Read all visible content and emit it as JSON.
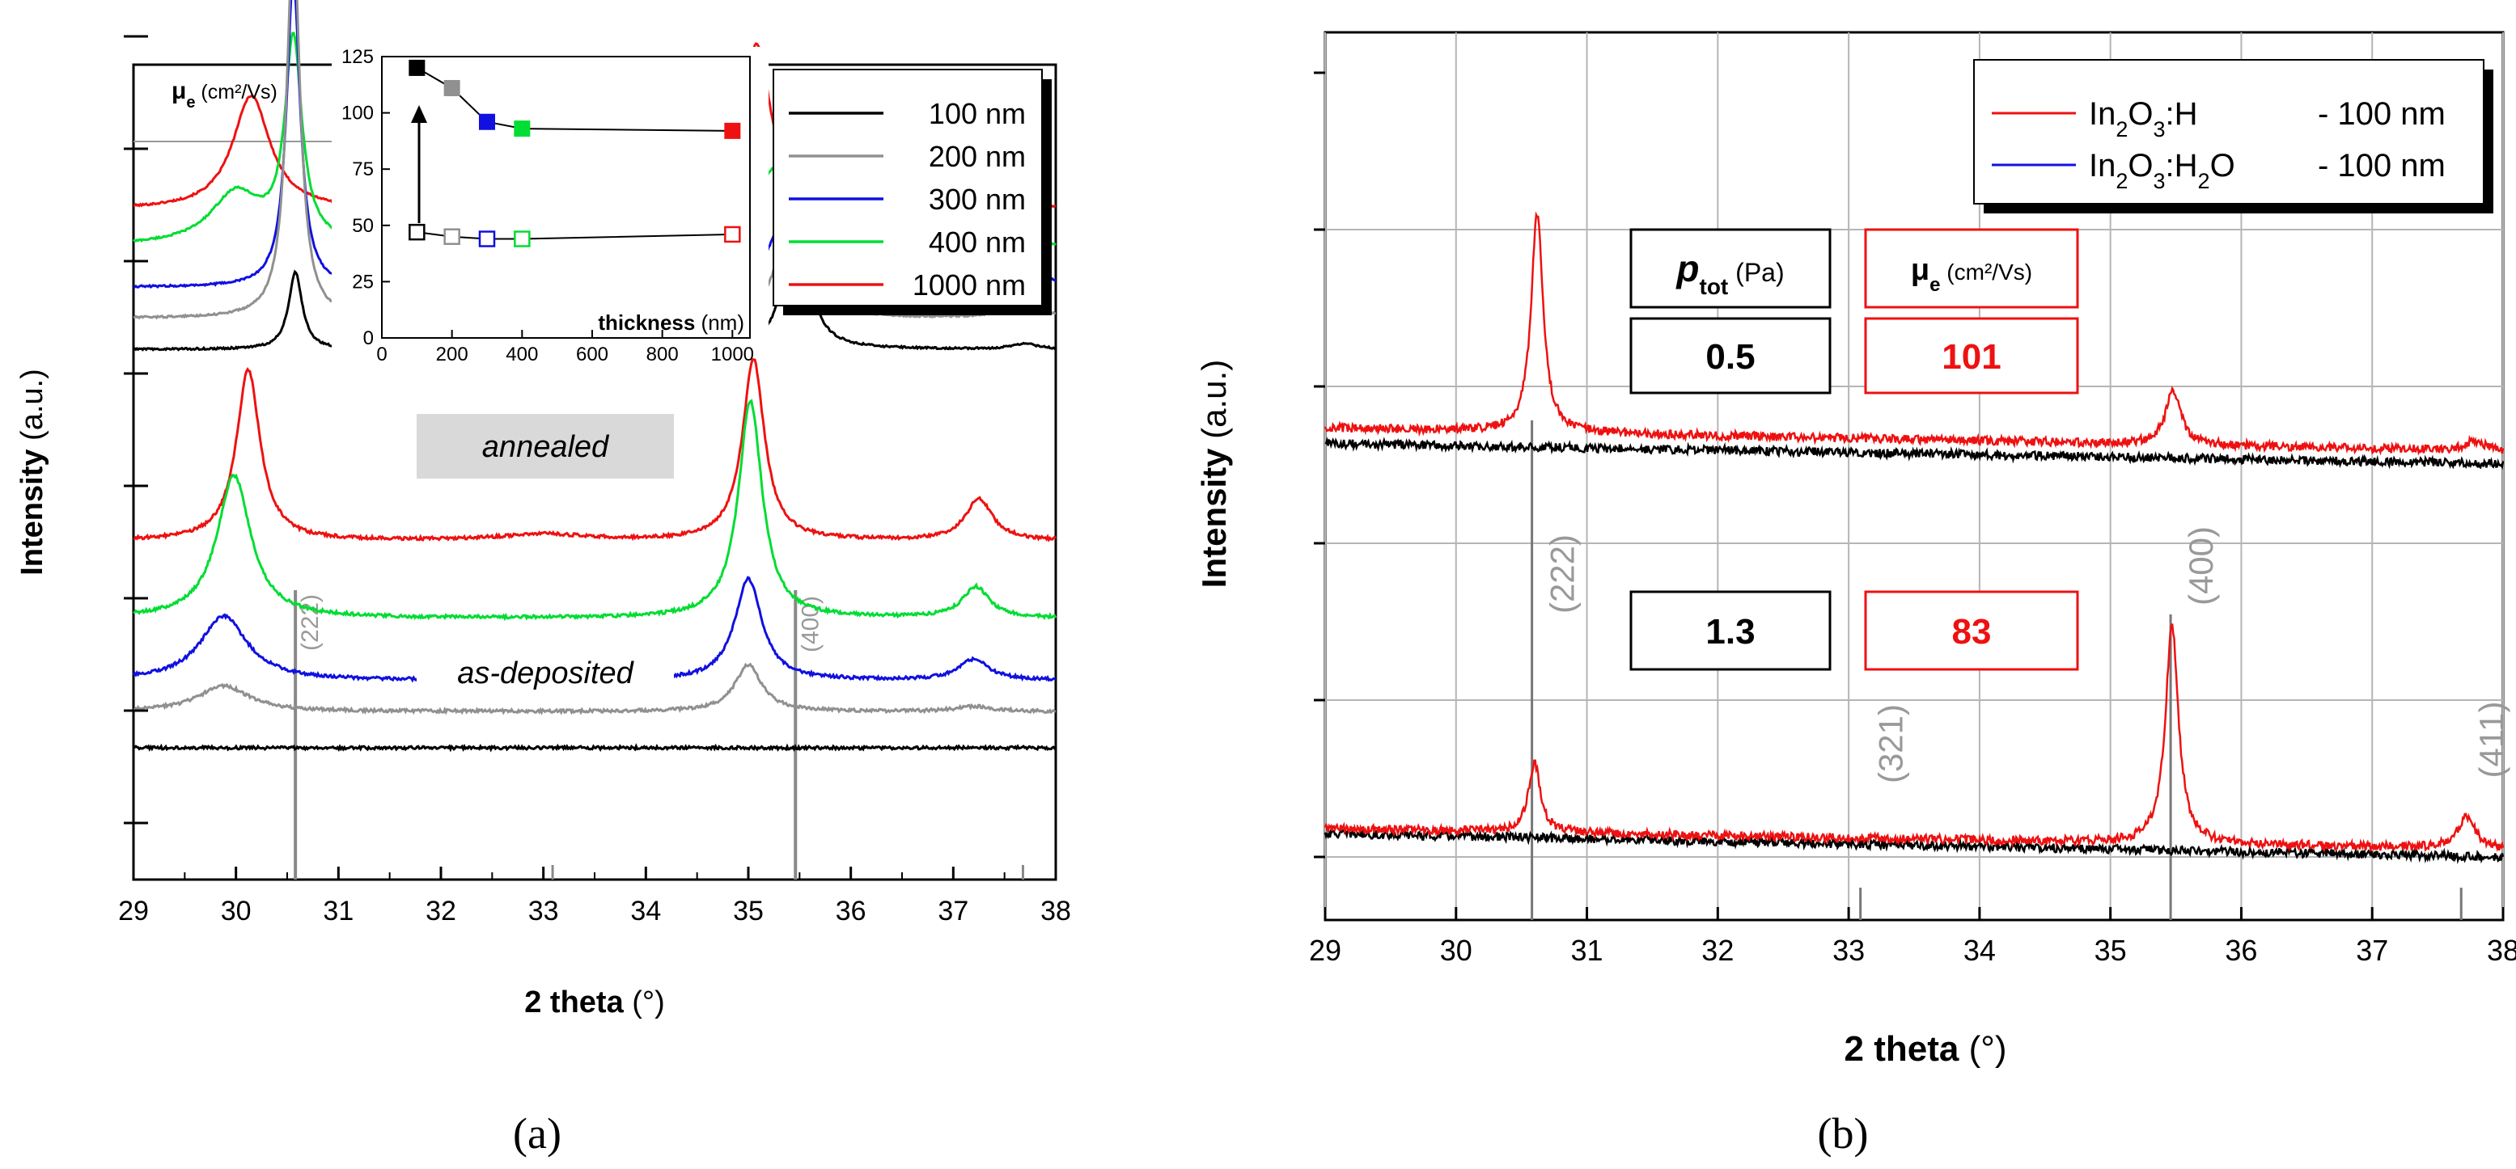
{
  "panel_labels": {
    "a": "(a)",
    "b": "(b)"
  },
  "chart_data": [
    {
      "panel": "a",
      "type": "line",
      "xlabel_bold": "2 theta",
      "xlabel_unit": " (°)",
      "ylabel_bold": "Intensity",
      "ylabel_unit": " (a.u.)",
      "xlim": [
        29,
        38
      ],
      "xticks": [
        "29",
        "30",
        "31",
        "32",
        "33",
        "34",
        "35",
        "36",
        "37",
        "38"
      ],
      "legend": [
        {
          "name": "100 nm",
          "color": "#000000"
        },
        {
          "name": "200 nm",
          "color": "#909090"
        },
        {
          "name": "300 nm",
          "color": "#1010e0"
        },
        {
          "name": "400 nm",
          "color": "#00dd33"
        },
        {
          "name": "1000 nm",
          "color": "#ee1111"
        }
      ],
      "box_labels": {
        "annealed": "annealed",
        "as_deposited": "as-deposited"
      },
      "reflections": [
        {
          "label": "(222)",
          "two_theta": 30.58
        },
        {
          "label": "(400)",
          "two_theta": 35.46
        }
      ],
      "minor_tick_positions": [
        33.09,
        37.68
      ],
      "mobility_axis_label_main": "μ",
      "mobility_axis_label_sub": "e",
      "mobility_axis_label_unit": " (cm²/Vs)",
      "series": [
        {
          "group": "annealed",
          "color": "#ee1111",
          "offset": 6.2,
          "peaks": [
            [
              30.15,
              0.22,
              1.1
            ],
            [
              32.75,
              0.3,
              0.12
            ],
            [
              35.08,
              0.17,
              1.6
            ],
            [
              37.25,
              0.2,
              0.35
            ]
          ]
        },
        {
          "group": "annealed",
          "color": "#00dd33",
          "offset": 5.85,
          "peaks": [
            [
              30.0,
              0.3,
              0.5
            ],
            [
              30.56,
              0.1,
              1.95
            ],
            [
              35.25,
              0.2,
              0.75
            ],
            [
              37.3,
              0.2,
              0.15
            ]
          ]
        },
        {
          "group": "annealed",
          "color": "#1010e0",
          "offset": 5.45,
          "peaks": [
            [
              30.56,
              0.08,
              3.0
            ],
            [
              35.4,
              0.18,
              0.85
            ],
            [
              37.65,
              0.2,
              0.25
            ]
          ]
        },
        {
          "group": "annealed",
          "color": "#909090",
          "offset": 5.15,
          "peaks": [
            [
              30.56,
              0.08,
              3.7
            ],
            [
              35.45,
              0.12,
              1.8
            ],
            [
              37.68,
              0.15,
              0.25
            ]
          ]
        },
        {
          "group": "annealed",
          "color": "#000000",
          "offset": 4.85,
          "peaks": [
            [
              30.58,
              0.08,
              0.75
            ],
            [
              35.47,
              0.12,
              1.55
            ],
            [
              37.7,
              0.15,
              0.05
            ]
          ]
        },
        {
          "group": "as-deposited",
          "color": "#ee1111",
          "offset": 3.0,
          "peaks": [
            [
              30.12,
              0.14,
              1.65
            ],
            [
              33.0,
              0.5,
              0.06
            ],
            [
              35.05,
              0.13,
              1.75
            ],
            [
              37.25,
              0.16,
              0.4
            ]
          ]
        },
        {
          "group": "as-deposited",
          "color": "#00dd33",
          "offset": 2.25,
          "peaks": [
            [
              29.98,
              0.2,
              1.38
            ],
            [
              35.02,
              0.14,
              2.1
            ],
            [
              37.22,
              0.16,
              0.3
            ]
          ]
        },
        {
          "group": "as-deposited",
          "color": "#1010e0",
          "offset": 1.65,
          "peaks": [
            [
              29.88,
              0.28,
              0.62
            ],
            [
              35.0,
              0.16,
              0.98
            ],
            [
              37.2,
              0.18,
              0.2
            ]
          ]
        },
        {
          "group": "as-deposited",
          "color": "#909090",
          "offset": 1.35,
          "peaks": [
            [
              29.88,
              0.3,
              0.25
            ],
            [
              35.0,
              0.16,
              0.45
            ],
            [
              37.2,
              0.2,
              0.05
            ]
          ]
        },
        {
          "group": "as-deposited",
          "color": "#000000",
          "offset": 1.0,
          "peaks": []
        }
      ],
      "inset": {
        "type": "scatter",
        "xlabel_bold": "thickness",
        "xlabel_unit": " (nm)",
        "xlim": [
          0,
          1050
        ],
        "ylim": [
          0,
          125
        ],
        "xticks": [
          0,
          200,
          400,
          600,
          800,
          1000
        ],
        "yticks": [
          0,
          25,
          50,
          75,
          100,
          125
        ],
        "annealed": [
          {
            "x": 100,
            "y": 120,
            "color": "#000000"
          },
          {
            "x": 200,
            "y": 111,
            "color": "#909090"
          },
          {
            "x": 300,
            "y": 96,
            "color": "#1010e0"
          },
          {
            "x": 400,
            "y": 93,
            "color": "#00dd33"
          },
          {
            "x": 1000,
            "y": 92,
            "color": "#ee1111"
          }
        ],
        "as_deposited": [
          {
            "x": 100,
            "y": 47,
            "color": "#000000"
          },
          {
            "x": 200,
            "y": 45,
            "color": "#909090"
          },
          {
            "x": 300,
            "y": 44,
            "color": "#1010e0"
          },
          {
            "x": 400,
            "y": 44,
            "color": "#00dd33"
          },
          {
            "x": 1000,
            "y": 46,
            "color": "#ee1111"
          }
        ]
      }
    },
    {
      "panel": "b",
      "type": "line",
      "xlabel_bold": "2 theta",
      "xlabel_unit": " (°)",
      "ylabel_bold": "Intensity",
      "ylabel_unit": " (a.u.)",
      "xlim": [
        29,
        38
      ],
      "xticks": [
        "29",
        "30",
        "31",
        "32",
        "33",
        "34",
        "35",
        "36",
        "37",
        "38"
      ],
      "legend": [
        {
          "formula_parts": [
            "In",
            "2",
            "O",
            "3",
            ":H"
          ],
          "suffix": "- 100 nm",
          "color": "#ee1111"
        },
        {
          "formula_parts": [
            "In",
            "2",
            "O",
            "3",
            ":H",
            "2",
            "O"
          ],
          "suffix": "- 100 nm",
          "color": "#1010e0"
        }
      ],
      "reflections": [
        {
          "label": "(222)",
          "two_theta": 30.58
        },
        {
          "label": "(321)",
          "two_theta": 33.09
        },
        {
          "label": "(400)",
          "two_theta": 35.46
        },
        {
          "label": "(411)",
          "two_theta": 37.68
        }
      ],
      "table": {
        "p_header_main": "p",
        "p_header_sub": "tot",
        "p_header_unit": " (Pa)",
        "mu_header_main": "μ",
        "mu_header_sub": "e",
        "mu_header_unit": " (cm²/Vs)",
        "rows": [
          {
            "p_tot": "0.5",
            "mu_e": "101"
          },
          {
            "p_tot": "1.3",
            "mu_e": "83"
          }
        ]
      },
      "series": [
        {
          "group": "upper",
          "color": "#000000",
          "base_start": 2.65,
          "base_end": 2.52,
          "peaks": []
        },
        {
          "group": "upper",
          "color": "#ee1111",
          "base_start": 2.75,
          "base_end": 2.6,
          "peaks": [
            [
              30.62,
              0.055,
              1.4
            ],
            [
              35.48,
              0.07,
              0.35
            ],
            [
              37.78,
              0.1,
              0.06
            ]
          ]
        },
        {
          "group": "lower",
          "color": "#000000",
          "base_start": 0.15,
          "base_end": 0.0,
          "peaks": []
        },
        {
          "group": "lower",
          "color": "#ee1111",
          "base_start": 0.18,
          "base_end": 0.05,
          "peaks": [
            [
              30.6,
              0.055,
              0.45
            ],
            [
              35.47,
              0.06,
              1.4
            ],
            [
              37.72,
              0.08,
              0.2
            ]
          ]
        }
      ]
    }
  ]
}
